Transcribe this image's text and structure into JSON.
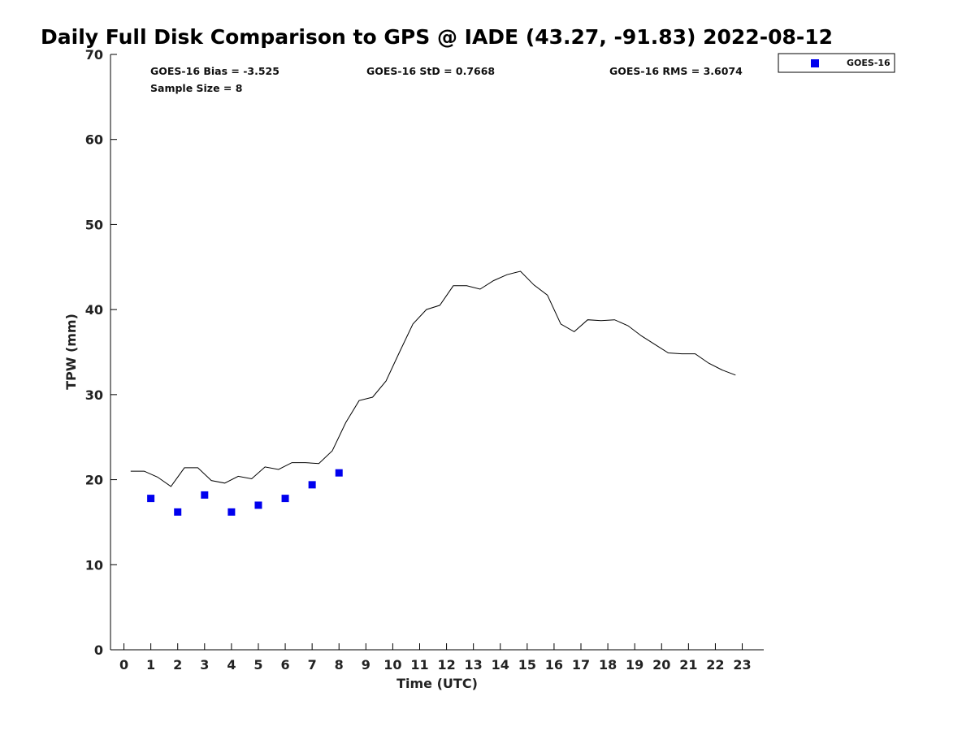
{
  "chart_data": {
    "type": "scatter",
    "title": "Daily Full Disk Comparison to GPS @ IADE (43.27, -91.83) 2022-08-12",
    "xlabel": "Time (UTC)",
    "ylabel": "TPW (mm)",
    "xlim": [
      -0.5,
      23.8
    ],
    "ylim": [
      0,
      70
    ],
    "x_ticks": [
      0,
      1,
      2,
      3,
      4,
      5,
      6,
      7,
      8,
      9,
      10,
      11,
      12,
      13,
      14,
      15,
      16,
      17,
      18,
      19,
      20,
      21,
      22,
      23
    ],
    "y_ticks": [
      0,
      10,
      20,
      30,
      40,
      50,
      60,
      70
    ],
    "grid": false,
    "legend_position": "top-right",
    "stats": {
      "bias": "GOES-16 Bias = -3.525",
      "std": "GOES-16 StD = 0.7668",
      "rms": "GOES-16 RMS = 3.6074",
      "sample": "Sample Size = 8"
    },
    "series": [
      {
        "name": "GOES-16",
        "kind": "scatter",
        "color": "#0000ee",
        "x": [
          1,
          2,
          3,
          4,
          5,
          6,
          7,
          8
        ],
        "y": [
          17.8,
          16.2,
          18.2,
          16.2,
          17.0,
          17.8,
          19.4,
          20.8
        ]
      },
      {
        "kind": "line",
        "color": "#000000",
        "x": [
          0.25,
          0.75,
          1.25,
          1.75,
          2.25,
          2.75,
          3.25,
          3.75,
          4.25,
          4.75,
          5.25,
          5.75,
          6.25,
          6.75,
          7.25,
          7.75,
          8.25,
          8.75,
          9.25,
          9.75,
          10.25,
          10.75,
          11.25,
          11.75,
          12.25,
          12.75,
          13.25,
          13.75,
          14.25,
          14.75,
          15.25,
          15.75,
          16.25,
          16.75,
          17.25,
          17.75,
          18.25,
          18.75,
          19.25,
          19.75,
          20.25,
          20.75,
          21.25,
          21.75,
          22.25,
          22.75
        ],
        "y": [
          21.0,
          21.0,
          20.3,
          19.2,
          21.4,
          21.4,
          19.9,
          19.6,
          20.4,
          20.1,
          21.5,
          21.2,
          22.0,
          22.0,
          21.9,
          23.4,
          26.7,
          29.3,
          29.7,
          31.6,
          35.0,
          38.3,
          40.0,
          40.5,
          42.8,
          42.8,
          42.4,
          43.4,
          44.1,
          44.5,
          42.9,
          41.7,
          38.3,
          37.4,
          38.8,
          38.7,
          38.8,
          38.1,
          36.9,
          35.9,
          34.9,
          34.8,
          34.8,
          33.7,
          32.9,
          32.3
        ]
      }
    ]
  }
}
